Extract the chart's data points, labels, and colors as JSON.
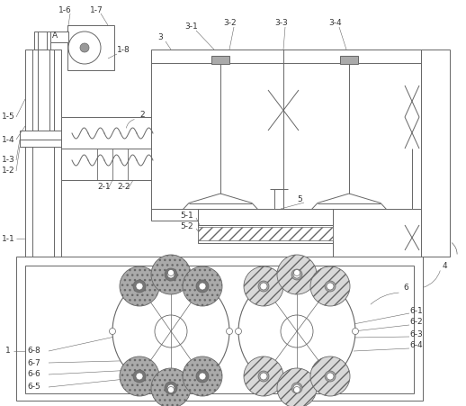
{
  "line_color": "#666666",
  "dark_fill": "#999999",
  "light_fill": "#cccccc",
  "hatch_fill": "#dddddd",
  "lw": 0.7,
  "fig_w": 5.18,
  "fig_h": 4.51,
  "dpi": 100
}
